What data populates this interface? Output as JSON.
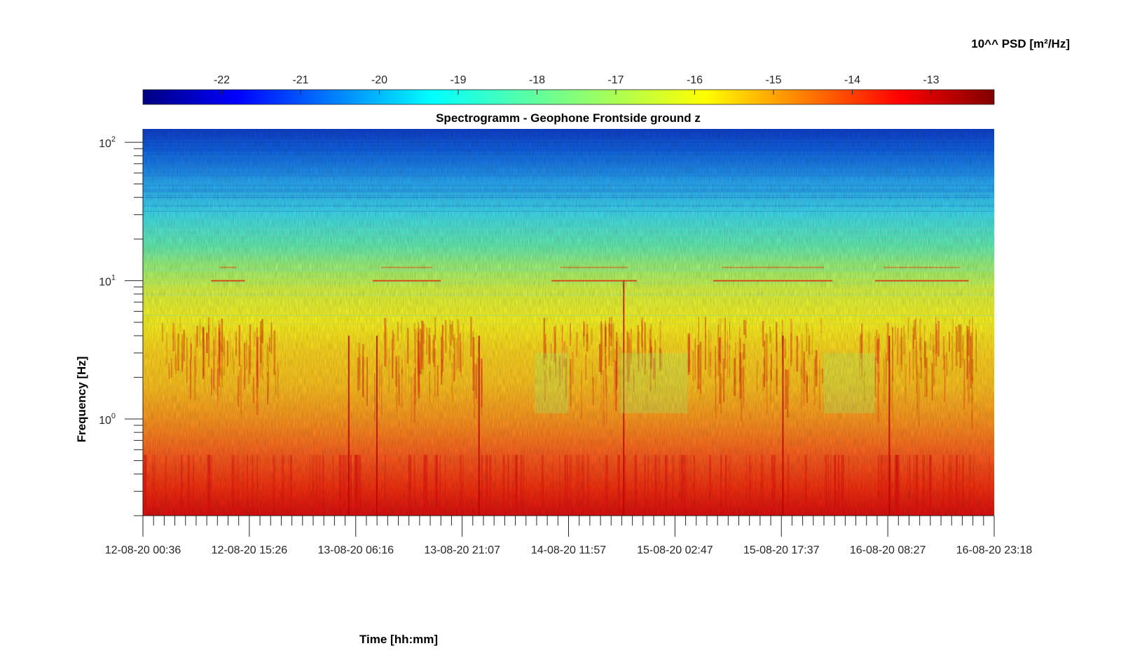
{
  "chart_data": {
    "type": "heatmap",
    "title": "Spectrogramm - Geophone Frontside ground z",
    "xlabel": "Time [hh:mm]",
    "ylabel": "Frequency [Hz]",
    "colorbar": {
      "label": "10^^ PSD [m²/Hz]",
      "ticks": [
        "-22",
        "-21",
        "-20",
        "-19",
        "-18",
        "-17",
        "-16",
        "-15",
        "-14",
        "-13"
      ],
      "range": [
        -23,
        -12.2
      ],
      "colormap": "jet",
      "placement": "top"
    },
    "x_ticks": [
      "12-08-20 00:36",
      "12-08-20 15:26",
      "13-08-20 06:16",
      "13-08-20 21:07",
      "14-08-20 11:57",
      "15-08-20 02:47",
      "15-08-20 17:37",
      "16-08-20 08:27",
      "16-08-20 23:18"
    ],
    "y_scale": "log",
    "y_range": [
      0.2,
      125
    ],
    "y_ticks": [
      {
        "base": "10",
        "exp": "0"
      },
      {
        "base": "10",
        "exp": "1"
      },
      {
        "base": "10",
        "exp": "2"
      }
    ],
    "bands": [
      {
        "f_low": 30,
        "f_high": 125,
        "log10_psd": -21.5
      },
      {
        "f_low": 15,
        "f_high": 30,
        "log10_psd": -19.3
      },
      {
        "f_low": 5,
        "f_high": 15,
        "log10_psd": -17.3
      },
      {
        "f_low": 1,
        "f_high": 5,
        "log10_psd": -16.0
      },
      {
        "f_low": 0.2,
        "f_high": 1,
        "log10_psd": -14.2
      }
    ]
  }
}
